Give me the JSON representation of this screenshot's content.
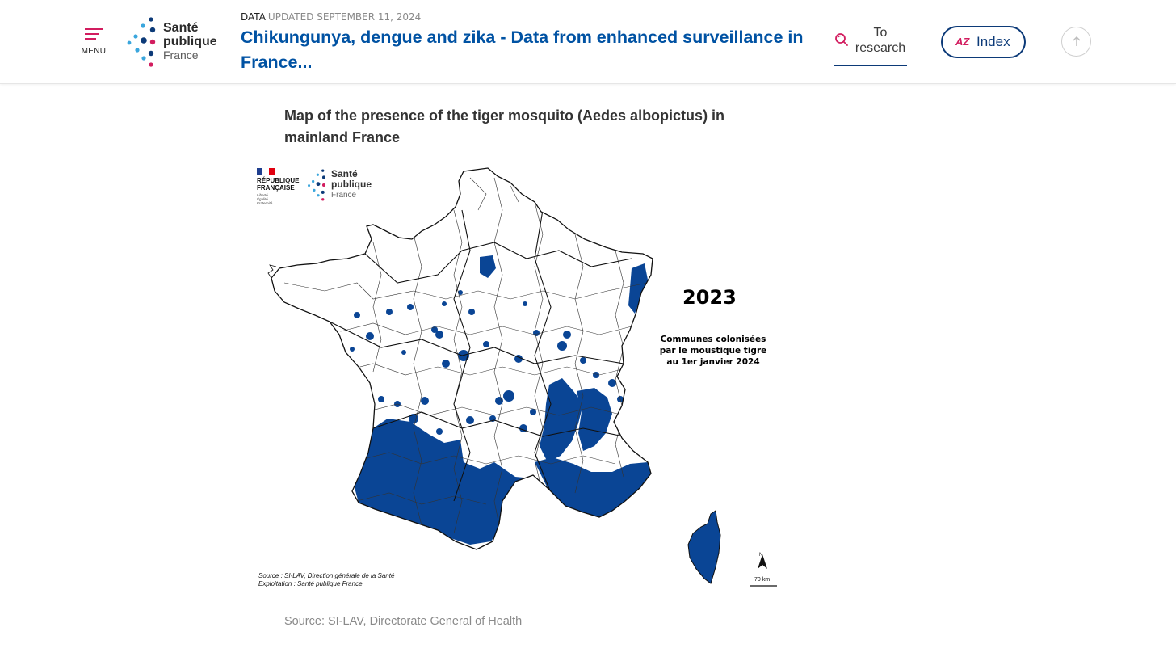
{
  "header": {
    "menu_label": "MENU",
    "logo": {
      "line1": "Santé",
      "line2": "publique",
      "line3": "France"
    },
    "breadcrumb": {
      "type": "DATA",
      "updated": "UPDATED SEPTEMBER 11, 2024"
    },
    "title": "Chikungunya, dengue and zika - Data from enhanced surveillance in France...",
    "search_label": "To research",
    "index_label": "Index",
    "index_icon_text": "AZ"
  },
  "figure": {
    "title": "Map of the presence of the tiger mosquito (Aedes albopictus) in mainland France",
    "map": {
      "republic_line1": "RÉPUBLIQUE",
      "republic_line2": "FRANÇAISE",
      "motto1": "Liberté",
      "motto2": "Égalité",
      "motto3": "Fraternité",
      "logo_line1": "Santé",
      "logo_line2": "publique",
      "logo_line3": "France",
      "year": "2023",
      "legend_line1": "Communes colonisées",
      "legend_line2": "par le moustique tigre",
      "legend_line3": "au 1er janvier 2024",
      "source_line1": "Source : SI-LAV, Direction générale de la Santé",
      "source_line2": "Exploitation : Santé publique France",
      "north_label": "N",
      "scale_label": "70 km",
      "colonized_color": "#0a4595"
    },
    "caption": "Source: SI-LAV, Directorate General of Health"
  },
  "colors": {
    "brand_blue": "#0052a3",
    "navy": "#0c3a78",
    "accent_pink": "#d21d5f"
  }
}
